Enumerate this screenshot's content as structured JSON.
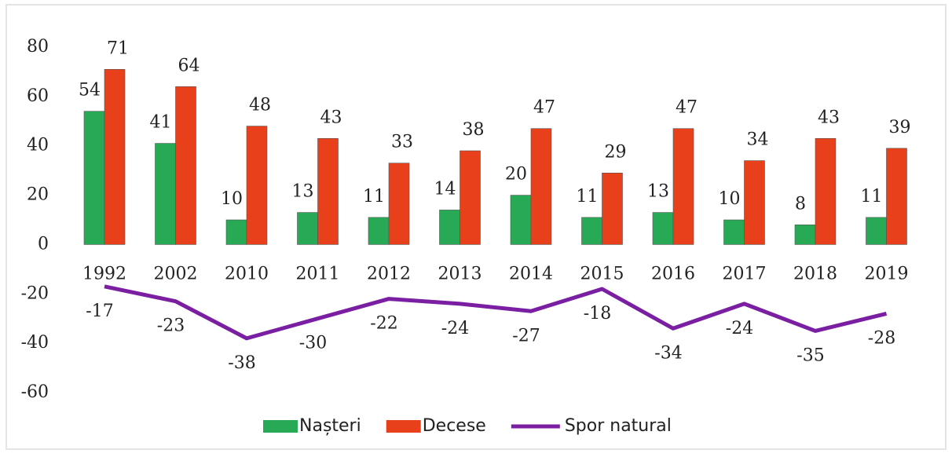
{
  "chart_data": {
    "type": "bar",
    "categories": [
      "1992",
      "2002",
      "2010",
      "2011",
      "2012",
      "2013",
      "2014",
      "2015",
      "2016",
      "2017",
      "2018",
      "2019"
    ],
    "series": [
      {
        "name": "Nașteri",
        "type": "bar",
        "color": "#27a955",
        "values": [
          54,
          41,
          10,
          13,
          11,
          14,
          20,
          11,
          13,
          10,
          8,
          11
        ]
      },
      {
        "name": "Decese",
        "type": "bar",
        "color": "#e8401a",
        "values": [
          71,
          64,
          48,
          43,
          33,
          38,
          47,
          29,
          47,
          34,
          43,
          39
        ]
      },
      {
        "name": "Spor natural",
        "type": "line",
        "color": "#7b1fa2",
        "values": [
          -17,
          -23,
          -38,
          -30,
          -22,
          -24,
          -27,
          -18,
          -34,
          -24,
          -35,
          -28
        ]
      }
    ],
    "ylim": [
      -60,
      80
    ],
    "yticks": [
      -60,
      -40,
      -20,
      0,
      20,
      40,
      60,
      80
    ],
    "legend": "bottom"
  }
}
